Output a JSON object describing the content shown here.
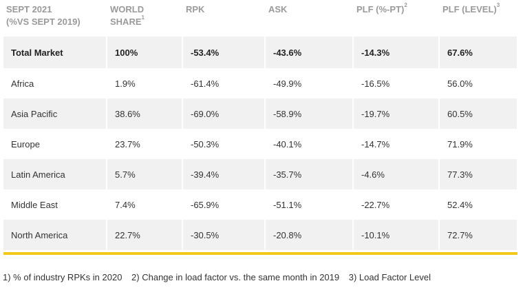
{
  "header": {
    "col1_line1": "SEPT 2021",
    "col1_line2": "(%VS SEPT 2019)",
    "world_line1": "WORLD",
    "world_line2": "SHARE",
    "world_sup": "1",
    "rpk": "RPK",
    "ask": "ASK",
    "plf_pt": "PLF (%-PT)",
    "plf_pt_sup": "2",
    "plf_level": "PLF (LEVEL)",
    "plf_level_sup": "3"
  },
  "rows": [
    {
      "region": "Total Market",
      "share": "100%",
      "rpk": "-53.4%",
      "ask": "-43.6%",
      "plf_pt": "-14.3%",
      "plf_level": "67.6%"
    },
    {
      "region": "Africa",
      "share": "1.9%",
      "rpk": "-61.4%",
      "ask": "-49.9%",
      "plf_pt": "-16.5%",
      "plf_level": "56.0%"
    },
    {
      "region": "Asia Pacific",
      "share": "38.6%",
      "rpk": "-69.0%",
      "ask": "-58.9%",
      "plf_pt": "-19.7%",
      "plf_level": "60.5%"
    },
    {
      "region": "Europe",
      "share": "23.7%",
      "rpk": "-50.3%",
      "ask": "-40.1%",
      "plf_pt": "-14.7%",
      "plf_level": "71.9%"
    },
    {
      "region": "Latin America",
      "share": "5.7%",
      "rpk": "-39.4%",
      "ask": "-35.7%",
      "plf_pt": "-4.6%",
      "plf_level": "77.3%"
    },
    {
      "region": "Middle East",
      "share": "7.4%",
      "rpk": "-65.9%",
      "ask": "-51.1%",
      "plf_pt": "-22.7%",
      "plf_level": "52.4%"
    },
    {
      "region": "North America",
      "share": "22.7%",
      "rpk": "-30.5%",
      "ask": "-20.8%",
      "plf_pt": "-10.1%",
      "plf_level": "72.7%"
    }
  ],
  "footnotes": [
    "1) % of industry RPKs in 2020",
    "2) Change in load factor vs. the same month in 2019",
    "3) Load Factor Level"
  ],
  "colors": {
    "accent_rule": "#f2c91b",
    "row_shade": "#f1f1f1",
    "header_text": "#9a9a9a"
  }
}
